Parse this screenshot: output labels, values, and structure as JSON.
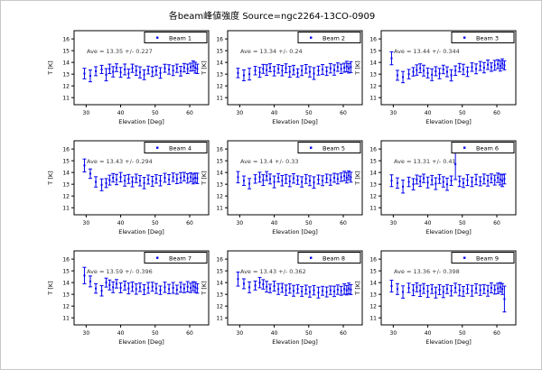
{
  "title": "各beam峰値強度 Source=ngc2264-13CO-0909",
  "window": {
    "background": "#ffffff",
    "border_color": "#c8c8c8",
    "text_color": "#000000"
  },
  "chart_data": {
    "type": "scatter",
    "subtype": "errorbar",
    "grid": false,
    "layout": "3x3 grid of subplots",
    "legend_position": "upper right",
    "marker": "point",
    "series_color": "#0000ee",
    "annotation_color": "#3c3c3c",
    "xlabel": "Elevation [Deg]",
    "ylabel": "T [K]",
    "xticks": [
      30,
      40,
      50,
      60
    ],
    "yticks": [
      11,
      12,
      13,
      14,
      15,
      16
    ],
    "xlim": [
      26.5,
      65.5
    ],
    "ylim": [
      10.4,
      16.7
    ],
    "x": [
      29.5,
      31.2,
      32.8,
      34.5,
      35.8,
      36.8,
      37.8,
      38.8,
      40.0,
      41.2,
      42.3,
      43.4,
      44.5,
      45.6,
      46.8,
      48.0,
      49.2,
      50.3,
      51.5,
      52.8,
      54.0,
      55.2,
      56.3,
      57.4,
      58.4,
      59.4,
      60.3,
      61.0,
      61.6,
      62.2
    ],
    "subplots": [
      {
        "legend": "Beam 1",
        "annotation": "Ave = 13.35 +/- 0.227",
        "ave": 13.35,
        "std": 0.227,
        "y": [
          13.05,
          12.85,
          13.25,
          13.4,
          12.95,
          13.45,
          13.2,
          13.55,
          13.15,
          13.4,
          13.05,
          13.5,
          13.3,
          13.15,
          12.95,
          13.35,
          13.2,
          13.3,
          13.1,
          13.5,
          13.4,
          13.3,
          13.5,
          13.25,
          13.55,
          13.45,
          13.6,
          13.7,
          13.55,
          13.45
        ],
        "yerr": [
          0.45,
          0.5,
          0.38,
          0.35,
          0.52,
          0.4,
          0.44,
          0.33,
          0.42,
          0.46,
          0.38,
          0.35,
          0.4,
          0.47,
          0.42,
          0.33,
          0.4,
          0.38,
          0.45,
          0.34,
          0.4,
          0.42,
          0.35,
          0.41,
          0.36,
          0.4,
          0.34,
          0.42,
          0.46,
          0.4
        ]
      },
      {
        "legend": "Beam 2",
        "annotation": "Ave = 13.34 +/- 0.24",
        "ave": 13.34,
        "std": 0.24,
        "y": [
          13.1,
          12.9,
          13.0,
          13.3,
          13.15,
          13.45,
          13.35,
          13.55,
          13.25,
          13.45,
          13.3,
          13.5,
          13.2,
          13.35,
          13.1,
          13.3,
          13.45,
          13.2,
          13.05,
          13.3,
          13.4,
          13.25,
          13.5,
          13.35,
          13.6,
          13.45,
          13.55,
          13.65,
          13.5,
          13.6
        ],
        "yerr": [
          0.4,
          0.46,
          0.5,
          0.36,
          0.42,
          0.38,
          0.45,
          0.34,
          0.4,
          0.36,
          0.44,
          0.38,
          0.46,
          0.4,
          0.35,
          0.42,
          0.37,
          0.44,
          0.5,
          0.38,
          0.42,
          0.36,
          0.4,
          0.44,
          0.36,
          0.4,
          0.38,
          0.44,
          0.4,
          0.46
        ]
      },
      {
        "legend": "Beam 3",
        "annotation": "Ave = 13.44 +/- 0.344",
        "ave": 13.44,
        "std": 0.344,
        "y": [
          14.35,
          12.9,
          12.75,
          13.0,
          13.2,
          13.35,
          13.5,
          13.3,
          13.1,
          12.95,
          13.25,
          13.05,
          13.4,
          13.2,
          12.9,
          13.3,
          13.55,
          13.4,
          13.2,
          13.6,
          13.45,
          13.7,
          13.55,
          13.8,
          13.6,
          13.75,
          13.85,
          13.7,
          13.9,
          13.75
        ],
        "yerr": [
          0.55,
          0.42,
          0.48,
          0.4,
          0.36,
          0.44,
          0.38,
          0.46,
          0.42,
          0.5,
          0.38,
          0.44,
          0.36,
          0.42,
          0.48,
          0.4,
          0.36,
          0.44,
          0.4,
          0.36,
          0.42,
          0.38,
          0.44,
          0.4,
          0.36,
          0.42,
          0.38,
          0.44,
          0.4,
          0.38
        ]
      },
      {
        "legend": "Beam 4",
        "annotation": "Ave = 13.43 +/- 0.294",
        "ave": 13.43,
        "std": 0.294,
        "y": [
          14.6,
          13.9,
          13.2,
          12.95,
          13.1,
          13.35,
          13.55,
          13.4,
          13.6,
          13.3,
          13.45,
          13.2,
          13.5,
          13.3,
          13.1,
          13.4,
          13.25,
          13.45,
          13.3,
          13.55,
          13.4,
          13.6,
          13.45,
          13.55,
          13.65,
          13.5,
          13.6,
          13.45,
          13.55,
          13.5
        ],
        "yerr": [
          0.55,
          0.4,
          0.44,
          0.5,
          0.38,
          0.42,
          0.36,
          0.44,
          0.4,
          0.46,
          0.38,
          0.42,
          0.36,
          0.44,
          0.48,
          0.38,
          0.42,
          0.36,
          0.44,
          0.38,
          0.42,
          0.36,
          0.4,
          0.44,
          0.36,
          0.4,
          0.38,
          0.42,
          0.4,
          0.44
        ]
      },
      {
        "legend": "Beam 5",
        "annotation": "Ave = 13.4 +/- 0.33",
        "ave": 13.4,
        "std": 0.33,
        "y": [
          13.6,
          13.3,
          13.05,
          13.45,
          13.6,
          13.35,
          13.7,
          13.45,
          13.2,
          13.55,
          13.3,
          13.45,
          13.25,
          13.5,
          13.35,
          13.2,
          13.45,
          13.3,
          13.15,
          13.4,
          13.3,
          13.5,
          13.35,
          13.55,
          13.45,
          13.6,
          13.7,
          13.55,
          13.75,
          13.6
        ],
        "yerr": [
          0.48,
          0.4,
          0.44,
          0.36,
          0.42,
          0.46,
          0.38,
          0.42,
          0.5,
          0.36,
          0.44,
          0.38,
          0.46,
          0.4,
          0.36,
          0.44,
          0.38,
          0.42,
          0.48,
          0.38,
          0.42,
          0.36,
          0.44,
          0.38,
          0.42,
          0.36,
          0.4,
          0.44,
          0.38,
          0.42
        ]
      },
      {
        "legend": "Beam 6",
        "annotation": "Ave = 13.31 +/- 0.41",
        "ave": 13.31,
        "std": 0.41,
        "y": [
          13.3,
          13.1,
          12.8,
          13.2,
          13.0,
          13.4,
          13.25,
          13.5,
          13.15,
          13.35,
          13.05,
          13.45,
          13.2,
          13.0,
          13.3,
          14.7,
          13.25,
          13.1,
          13.35,
          13.2,
          13.4,
          13.25,
          13.45,
          13.3,
          13.5,
          13.35,
          13.55,
          13.4,
          13.3,
          13.45
        ],
        "yerr": [
          0.5,
          0.44,
          0.55,
          0.4,
          0.48,
          0.38,
          0.44,
          0.36,
          0.46,
          0.4,
          0.5,
          0.38,
          0.44,
          0.52,
          0.4,
          1.3,
          0.44,
          0.38,
          0.46,
          0.4,
          0.44,
          0.38,
          0.42,
          0.46,
          0.38,
          0.42,
          0.4,
          0.46,
          0.5,
          0.42
        ]
      },
      {
        "legend": "Beam 7",
        "annotation": "Ave = 13.59 +/- 0.396",
        "ave": 13.59,
        "std": 0.396,
        "y": [
          14.6,
          14.1,
          13.5,
          13.3,
          14.0,
          13.8,
          13.6,
          13.9,
          13.55,
          13.75,
          13.5,
          13.65,
          13.45,
          13.6,
          13.4,
          13.55,
          13.65,
          13.5,
          13.35,
          13.6,
          13.45,
          13.55,
          13.4,
          13.6,
          13.5,
          13.65,
          13.55,
          13.7,
          13.6,
          13.5
        ],
        "yerr": [
          0.7,
          0.46,
          0.4,
          0.44,
          0.38,
          0.42,
          0.46,
          0.36,
          0.42,
          0.38,
          0.46,
          0.4,
          0.44,
          0.36,
          0.42,
          0.46,
          0.38,
          0.42,
          0.36,
          0.44,
          0.4,
          0.46,
          0.38,
          0.42,
          0.36,
          0.44,
          0.4,
          0.38,
          0.44,
          0.4
        ]
      },
      {
        "legend": "Beam 8",
        "annotation": "Ave = 13.43 +/- 0.362",
        "ave": 13.43,
        "std": 0.362,
        "y": [
          14.3,
          13.9,
          13.6,
          13.75,
          14.0,
          13.85,
          13.65,
          13.5,
          13.7,
          13.45,
          13.55,
          13.35,
          13.5,
          13.3,
          13.45,
          13.25,
          13.4,
          13.2,
          13.35,
          13.15,
          13.3,
          13.2,
          13.35,
          13.25,
          13.4,
          13.3,
          13.45,
          13.35,
          13.5,
          13.4
        ],
        "yerr": [
          0.6,
          0.42,
          0.46,
          0.38,
          0.44,
          0.4,
          0.46,
          0.36,
          0.42,
          0.46,
          0.38,
          0.44,
          0.4,
          0.46,
          0.36,
          0.42,
          0.38,
          0.44,
          0.4,
          0.46,
          0.38,
          0.42,
          0.36,
          0.44,
          0.4,
          0.38,
          0.44,
          0.4,
          0.46,
          0.42
        ]
      },
      {
        "legend": "Beam 9",
        "annotation": "Ave = 13.36 +/- 0.398",
        "ave": 13.36,
        "std": 0.398,
        "y": [
          13.7,
          13.45,
          13.2,
          13.55,
          13.35,
          13.6,
          13.3,
          13.5,
          13.25,
          13.45,
          13.15,
          13.4,
          13.2,
          13.45,
          13.3,
          13.55,
          13.35,
          13.25,
          13.45,
          13.3,
          13.5,
          13.35,
          13.45,
          13.3,
          13.55,
          13.4,
          13.5,
          13.6,
          13.45,
          12.6
        ],
        "yerr": [
          0.5,
          0.46,
          0.52,
          0.4,
          0.46,
          0.38,
          0.48,
          0.42,
          0.5,
          0.38,
          0.46,
          0.42,
          0.48,
          0.38,
          0.44,
          0.4,
          0.48,
          0.42,
          0.38,
          0.46,
          0.4,
          0.44,
          0.38,
          0.46,
          0.42,
          0.38,
          0.44,
          0.4,
          0.46,
          1.1
        ]
      }
    ]
  }
}
